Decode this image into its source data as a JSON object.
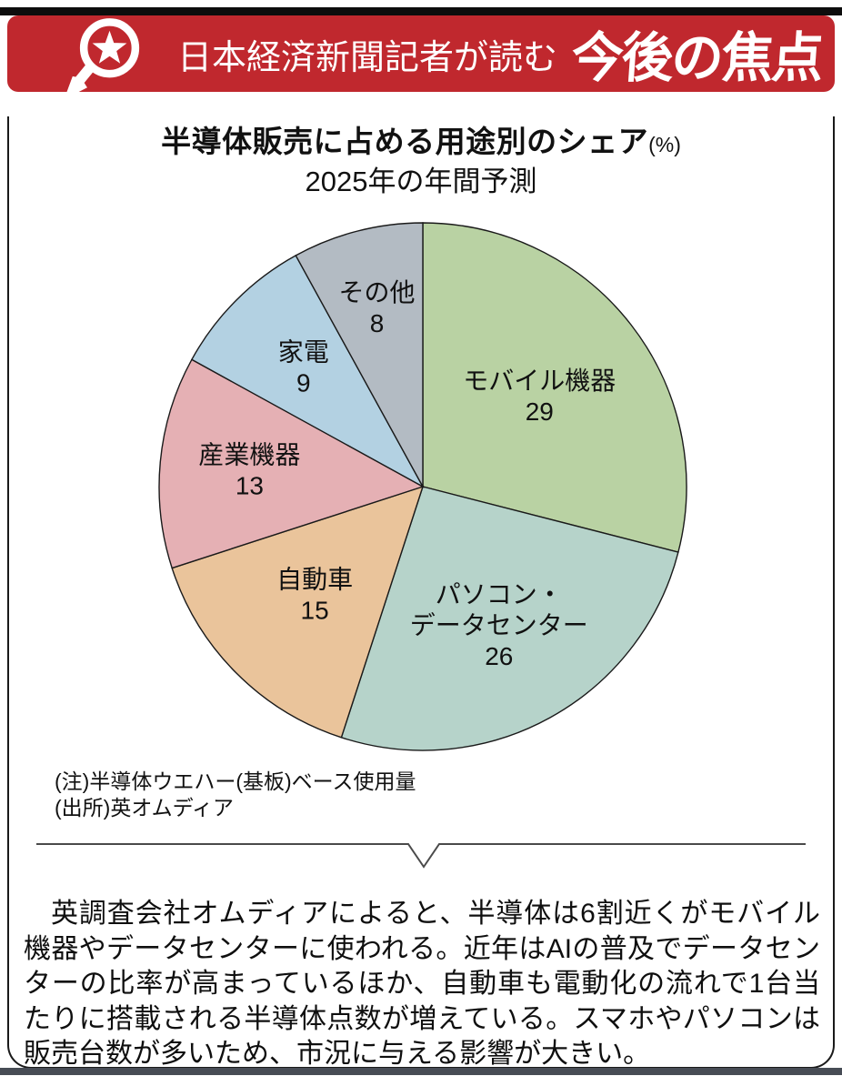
{
  "page": {
    "top_bar_color": "#0d0d0d",
    "bottom_bar_color": "#474c55",
    "card_border_color": "#1a1a1a"
  },
  "header": {
    "banner_color": "#c0282e",
    "text_color": "#ffffff",
    "icon": "magnifier-star-icon",
    "prefix": "日本経済新聞記者が読む",
    "title": "今後の焦点"
  },
  "chart_data": {
    "type": "pie",
    "title": "半導体販売に占める用途別のシェア",
    "title_suffix": "(%)",
    "subtitle": "2025年の年間予測",
    "unit": "%",
    "start_angle_deg": 0,
    "direction": "clockwise",
    "legend_position": "inside-labels",
    "stroke_color": "#1a1a1a",
    "label_color": "#111111",
    "label_font_size": 28,
    "slices": [
      {
        "label": "モバイル機器",
        "value": 29,
        "color": "#b9d2a3",
        "label_lines": [
          "モバイル機器"
        ],
        "label_r": 0.56
      },
      {
        "label": "パソコン・データセンター",
        "value": 26,
        "color": "#b6d3ca",
        "label_lines": [
          "パソコン・",
          "データセンター"
        ],
        "label_r": 0.6
      },
      {
        "label": "自動車",
        "value": 15,
        "color": "#eac49b",
        "label_lines": [
          "自動車"
        ],
        "label_r": 0.58
      },
      {
        "label": "産業機器",
        "value": 13,
        "color": "#e5b0b4",
        "label_lines": [
          "産業機器"
        ],
        "label_r": 0.66
      },
      {
        "label": "家電",
        "value": 9,
        "color": "#b3d1e2",
        "label_lines": [
          "家電"
        ],
        "label_r": 0.64
      },
      {
        "label": "その他",
        "value": 8,
        "color": "#b3bbc3",
        "label_lines": [
          "その他"
        ],
        "label_r": 0.7
      }
    ]
  },
  "notes": {
    "note": "(注)半導体ウエハー(基板)ベース使用量",
    "source": "(出所)英オムディア"
  },
  "article": {
    "paragraph": "英調査会社オムディアによると、半導体は6割近くがモバイル機器やデータセンターに使われる。近年はAIの普及でデータセンターの比率が高まっているほか、自動車も電動化の流れで1台当たりに搭載される半導体点数が増えている。スマホやパソコンは販売台数が多いため、市況に与える影響が大きい。"
  }
}
